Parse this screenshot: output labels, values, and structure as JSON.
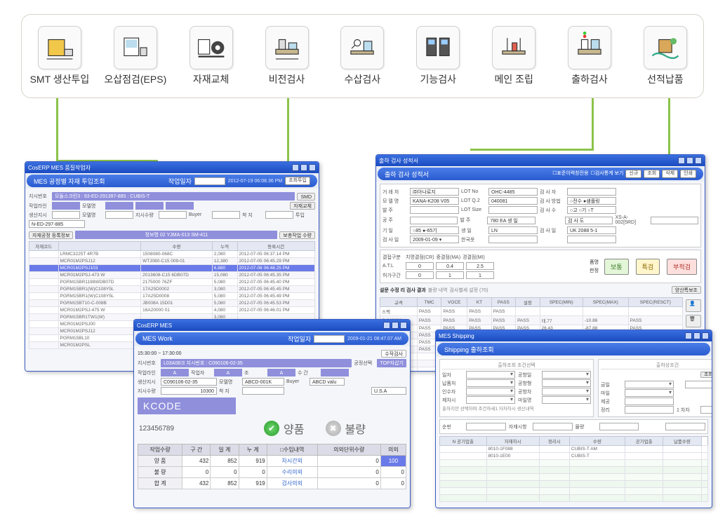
{
  "flow": {
    "nodes": [
      {
        "label": "SMT 생산투입",
        "icon": "smt"
      },
      {
        "label": "오삽점검(EPS)",
        "icon": "eps"
      },
      {
        "label": "자재교체",
        "icon": "mat"
      },
      {
        "label": "비전검사",
        "icon": "vision"
      },
      {
        "label": "수삽검사",
        "icon": "hand"
      },
      {
        "label": "기능검사",
        "icon": "func"
      },
      {
        "label": "메인 조립",
        "icon": "assy"
      },
      {
        "label": "출하검사",
        "icon": "out"
      },
      {
        "label": "선적납품",
        "icon": "ship"
      }
    ]
  },
  "win1": {
    "title": "CosERP MES 품질작업자",
    "subhead": "MES 공정별 자재 투입조회",
    "date_label": "작업일자",
    "date": "2012-07-19",
    "timestamp": "2012-07-19 06:08.36 PM",
    "btn_query": "조회투입",
    "f_instr_label": "지시번호",
    "f_instr": "모듈스크린3 : 93-ED-291397-885 : CUBIS-T",
    "f_smd": "SMD",
    "f_line_label": "작업라인",
    "f_model_label": "모델명",
    "f_replace_btn": "자재교체",
    "f_prod_label": "생산지시",
    "f_model": "모델명",
    "f_instr2": "지시수량",
    "f_buyer": "Buyer",
    "f_dest": "착 지",
    "f_qty": "투입",
    "instr_no": "N-ED-297-885",
    "feeder_tab": "자재공정 등록정보",
    "feeder_btn": "보충작업 수량",
    "feeder_label": "정보명 02 YJMA-013  SM-411",
    "cols": [
      "자재코드",
      "",
      "수량",
      "누적",
      "등록시간"
    ],
    "rows": [
      [
        "",
        "LRMC3225T 4R7B",
        "1508080-068C",
        "2,080",
        "2012-07-05 06:37.14 PM"
      ],
      [
        "",
        "MCR01M2PSJ12",
        "WTJ080-C15 009-01",
        "12,380",
        "2012-07-05 06:45.29 PM"
      ],
      [
        "",
        "MCR01M2PSJ103",
        "",
        "6,880",
        "2012-07-06 06:48.25 PM"
      ],
      [
        "",
        "MCR01M2PSJ-473 W",
        "2013608-C15 6DB07D",
        "15,080",
        "2012-07-05 06:45.35 PM"
      ],
      [
        "",
        "PGRM15BR1198WDB07D",
        "2175000 76ZF",
        "5,080",
        "2012-07-05 06:45.40 PM"
      ],
      [
        "",
        "PGRM15BR1(W)C108Y5L",
        "17A25D0002",
        "3,080",
        "2012-07-05 06:45.45 PM"
      ],
      [
        "",
        "PGRM15BR1(W)C108Y5L",
        "17A25D0008",
        "5,080",
        "2012-07-05 06:45.49 PM"
      ],
      [
        "",
        "PGRM15BT10-C-008B",
        "JB008A 15D01",
        "5,080",
        "2012-07-05 06:45.53 PM"
      ],
      [
        "",
        "MCR01M2PSJ-475 W",
        "16A20000 01",
        "4,080",
        "2012-07-05 06:46.01 PM"
      ],
      [
        "",
        "PGRM15BR1TW1(W)",
        "",
        "3,080",
        ""
      ],
      [
        "",
        "MCR01M2PSJ00",
        "",
        "",
        ""
      ],
      [
        "",
        "MCR01M2PSJ12",
        "",
        "",
        ""
      ],
      [
        "",
        "PGRM15BL10",
        "",
        "",
        ""
      ],
      [
        "",
        "MCR01M2PSL",
        "",
        "",
        ""
      ]
    ]
  },
  "win2": {
    "title": "CosERP MES",
    "subhead": "MES Work",
    "date_label": "작업일자",
    "date": "2009-01-21",
    "timestamp": "2009-01-21 08:47.07 AM",
    "btn_top": "수작검사",
    "time_range": "15:30:00 ~ 17:30:00",
    "instr_label": "지시번호",
    "instr": "L03A08크 지시번호 : C090106-02-35",
    "line_label": "작업라인",
    "line_a": "A",
    "worker_label": "작업자",
    "worker": "A",
    "shift_label": "조",
    "shift": "A",
    "cnt_label": "수 간",
    "cnt": "",
    "proc_sel_label": "공정선택",
    "proc_sel": "TOP자삽기",
    "prod_label": "생산지시",
    "prod": "C090106-02-35",
    "model_label": "모델명",
    "model": "ABCD-001K",
    "buyer_label": "Buyer",
    "buyer": "ABCD valu",
    "qty_label": "지시수량",
    "qty": "10300",
    "dest_label": "착 지",
    "dest": "U.S.A",
    "kcode": "KCODE",
    "barcode": "123456789",
    "pass_label": "양품",
    "fail_label": "불량",
    "sum_headers": [
      "작업수량",
      "구 간",
      "일 계",
      "누 계",
      "□수입내역",
      "의외단위수량",
      "의외"
    ],
    "sum_rows": [
      [
        "양   품",
        "432",
        "852",
        "919",
        "차시간외",
        "0",
        "100"
      ],
      [
        "불   량",
        "0",
        "0",
        "0",
        "수리의외",
        "0",
        "0"
      ],
      [
        "합   계",
        "432",
        "852",
        "919",
        "검사의외",
        "0",
        "0"
      ]
    ]
  },
  "win3": {
    "title": "출하 검사 성적서",
    "subhead": "출하 검사 성적서",
    "chk1": "표준이력창전용",
    "chk2": "검사통계 보기",
    "btn_new": "신규",
    "btn_view": "조회",
    "btn_del": "삭제",
    "btn_print": "인쇄",
    "rows1": [
      [
        "거 래 처",
        "㈜아나로지",
        "LOT No",
        "OHC-4485",
        "검 사 자",
        ""
      ],
      [
        "모 델 명",
        "KANA-K208 V05",
        "LOT Q.2",
        "040081",
        "검 사 방법",
        "○전수  ●샘플링"
      ],
      [
        "발 주",
        "",
        "LOT Size",
        "",
        "검 사 수",
        "○고  ○기  ○T"
      ],
      [
        "공 주",
        "",
        "발 주",
        "780  EA   생 일",
        "",
        "검 사 도",
        "XS-A-002[5RD]"
      ],
      [
        "기 일",
        "○85  ●-65기",
        "생 일",
        "LN",
        "검 사 일",
        "UK 2088 5-1"
      ],
      [
        "검 사 일",
        "2009-01-09 ▾",
        "한국옷",
        "",
        "",
        ""
      ]
    ],
    "judgesec": [
      "결접구분",
      "치명결점(CR)",
      "중결점(MA)",
      "경결점(MI)",
      "품명",
      "판정"
    ],
    "judgevals": [
      "A.T.L",
      "0",
      "0.4",
      "2.5"
    ],
    "judgevals2": [
      "허가구간",
      "0",
      "1",
      "1"
    ],
    "btn_pass": "보통",
    "btn_hold": "특검",
    "btn_fail": "부적검",
    "tabs": [
      "설문 수정 리 검사 결과",
      "불량 내역",
      "검사별세 설정 (70)"
    ],
    "btn_gen": "양산특보조",
    "gcol": [
      "규격",
      "TMC",
      "VOCE",
      "KT",
      "PASS",
      "설정",
      "SPEC(MIN)",
      "SPEC(MAX)",
      "SPEC(RESCT)"
    ],
    "grows": [
      [
        "스펙",
        "PASS",
        "PASS",
        "PASS",
        "PASS",
        "",
        "",
        "",
        ""
      ],
      [
        "C-046981",
        "PASS",
        "PASS",
        "PASS",
        "PASS",
        "PASS",
        "태.77",
        "-10.86",
        "PASS"
      ],
      [
        "C-046987",
        "PASS",
        "PASS",
        "PASS",
        "PASS",
        "PASS",
        "26.43",
        "-87.88",
        "PASS"
      ],
      [
        "C-046986",
        "PASS",
        "PASS",
        "PASS",
        "PASS",
        "PASS",
        "31.58",
        "-70.68",
        "PASS"
      ],
      [
        "C-046982",
        "PASS",
        "PASS",
        "PASS",
        "PASS",
        "PASS",
        "26.43",
        "-97.08",
        "PASS"
      ],
      [
        "C-046982",
        "PASS",
        "PASS",
        "PASS",
        "PASS",
        "PASS",
        "26.42",
        "-98.54",
        "PASS"
      ],
      [
        "E-046910",
        "",
        "",
        "",
        "",
        "",
        "",
        "",
        ""
      ],
      [
        "C-046988",
        "",
        "",
        "",
        "",
        "",
        "",
        "",
        ""
      ],
      [
        "C-046985",
        "",
        "",
        "",
        "",
        "",
        "",
        "",
        ""
      ],
      [
        "C-046984",
        "",
        "",
        "",
        "",
        "",
        "",
        "",
        ""
      ]
    ]
  },
  "win4": {
    "title": "MES Shipping",
    "subhead": "Shipping 출하조회",
    "tab1": "출하조회 조건선택",
    "tab2": "출하상조건",
    "btn_q": "조회",
    "btn_s": "저장",
    "f": [
      [
        "일자",
        "",
        "공항일",
        "",
        "금일",
        "",
        "▾",
        "▾"
      ],
      [
        "납품처",
        "",
        "공항형",
        "",
        "마일",
        "",
        "",
        ""
      ],
      [
        "인수자",
        "",
        "공항차",
        "",
        "제공",
        "",
        "",
        ""
      ],
      [
        "제차시",
        "",
        "마일명",
        "",
        "정리",
        "",
        "",
        ""
      ],
      [
        "출하지만 선택하며 조건하세1 자차하시 생산내역",
        "",
        "",
        "",
        "",
        "",
        "",
        ""
      ]
    ],
    "f2": [
      [
        "순번",
        "",
        "자재시항",
        "",
        "물량",
        "",
        "",
        "공기업출"
      ]
    ],
    "gcol": [
      "N 공기업출",
      "자재하시",
      "정리시",
      "수량",
      "공기업출",
      "납품수량"
    ],
    "grows": [
      [
        "",
        "8010-1F088",
        "",
        "CUBIS-T AM",
        "",
        "",
        ""
      ],
      [
        "",
        "8010-1E00",
        "",
        "CUBIS-T",
        "",
        "",
        ""
      ]
    ]
  },
  "colors": {
    "accent": "#3a6fe0",
    "violet": "#8f8fdc",
    "green": "#8bc34a"
  }
}
